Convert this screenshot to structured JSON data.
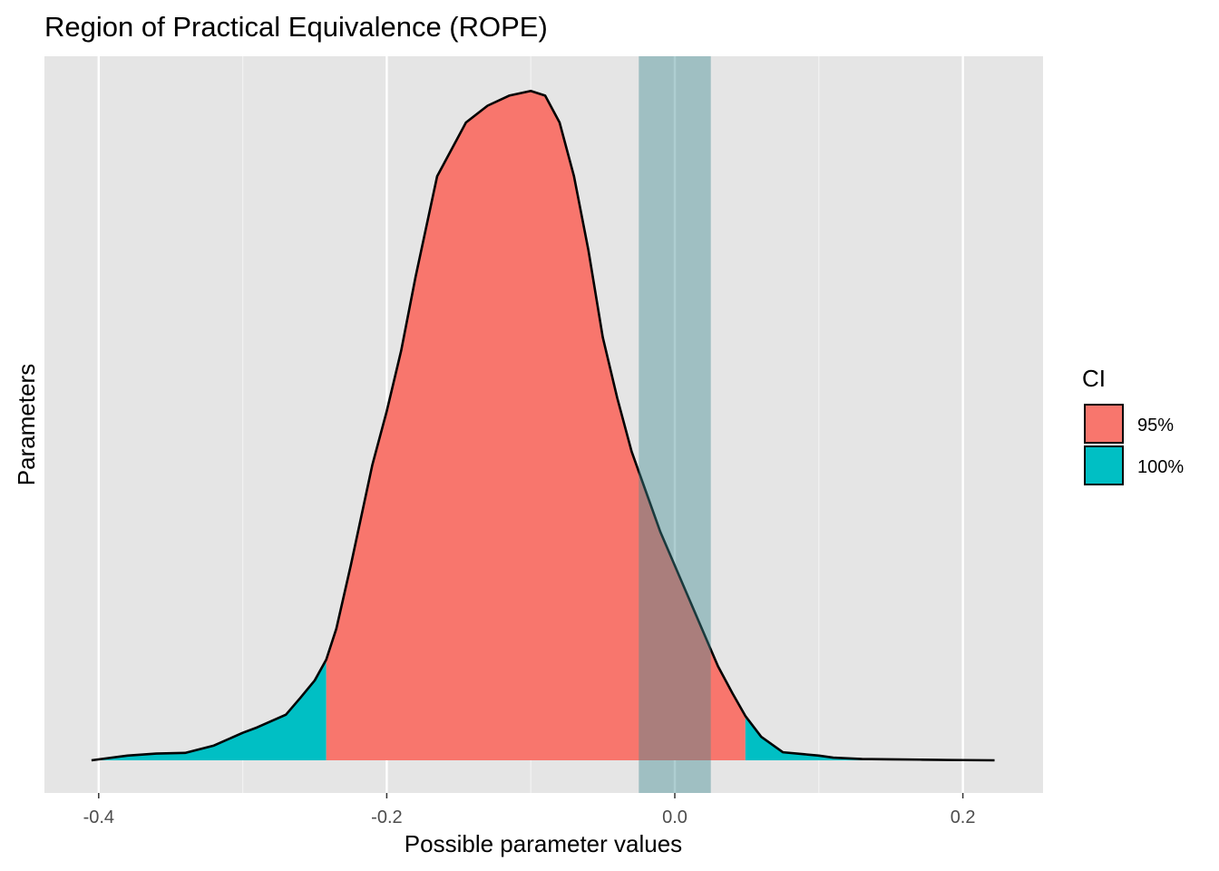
{
  "chart_data": {
    "type": "area",
    "title": "Region of Practical Equivalence (ROPE)",
    "xlabel": "Possible parameter values",
    "ylabel": "Parameters",
    "xlim": [
      -0.42,
      0.25
    ],
    "x_ticks": [
      -0.4,
      -0.2,
      0.0,
      0.2
    ],
    "x_tick_labels": [
      "-0.4",
      "-0.2",
      "0.0",
      "0.2"
    ],
    "grid": true,
    "legend": {
      "title": "CI",
      "position": "right",
      "entries": [
        {
          "label": "95%",
          "color": "#F8766D"
        },
        {
          "label": "100%",
          "color": "#00BFC4"
        }
      ]
    },
    "rope": {
      "low": -0.025,
      "high": 0.025,
      "color": "#99B9BC"
    },
    "ci_95": {
      "low": -0.242,
      "high": 0.049
    },
    "density": {
      "x": [
        -0.405,
        -0.38,
        -0.36,
        -0.34,
        -0.32,
        -0.3,
        -0.29,
        -0.27,
        -0.26,
        -0.25,
        -0.242,
        -0.235,
        -0.225,
        -0.21,
        -0.2,
        -0.19,
        -0.18,
        -0.165,
        -0.145,
        -0.13,
        -0.115,
        -0.1,
        -0.09,
        -0.08,
        -0.07,
        -0.06,
        -0.05,
        -0.04,
        -0.03,
        -0.02,
        -0.01,
        0.0,
        0.01,
        0.02,
        0.03,
        0.04,
        0.049,
        0.06,
        0.075,
        0.09,
        0.1,
        0.11,
        0.13,
        0.15,
        0.17,
        0.19,
        0.222
      ],
      "y": [
        0.0,
        0.007,
        0.01,
        0.011,
        0.022,
        0.041,
        0.049,
        0.068,
        0.093,
        0.119,
        0.15,
        0.196,
        0.29,
        0.44,
        0.52,
        0.61,
        0.72,
        0.87,
        0.95,
        0.975,
        0.99,
        0.997,
        0.99,
        0.95,
        0.87,
        0.76,
        0.63,
        0.54,
        0.46,
        0.4,
        0.34,
        0.29,
        0.24,
        0.19,
        0.14,
        0.1,
        0.066,
        0.035,
        0.012,
        0.009,
        0.007,
        0.004,
        0.002,
        0.0015,
        0.001,
        0.0005,
        0.0
      ]
    }
  }
}
